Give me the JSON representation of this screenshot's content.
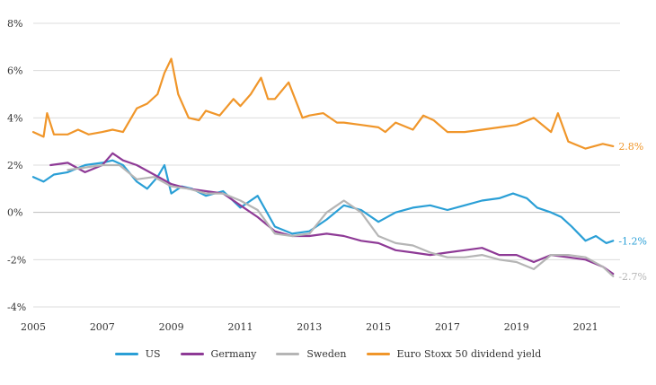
{
  "chart_data": {
    "type": "line",
    "title": "",
    "xlabel": "",
    "ylabel": "",
    "xlim": [
      2005,
      2022
    ],
    "ylim": [
      -4,
      8
    ],
    "y_ticks": [
      "-4%",
      "-2%",
      "0%",
      "2%",
      "4%",
      "6%",
      "8%"
    ],
    "y_tick_values": [
      -4,
      -2,
      0,
      2,
      4,
      6,
      8
    ],
    "x_ticks": [
      "2005",
      "2007",
      "2009",
      "2011",
      "2013",
      "2015",
      "2017",
      "2019",
      "2021"
    ],
    "x_tick_values": [
      2005,
      2007,
      2009,
      2011,
      2013,
      2015,
      2017,
      2019,
      2021
    ],
    "legend_position": "bottom",
    "series": [
      {
        "name": "US",
        "color": "#2a9fd6",
        "end_label": "-1.2%",
        "x": [
          2005.0,
          2005.3,
          2005.6,
          2006.0,
          2006.5,
          2007.0,
          2007.3,
          2007.6,
          2008.0,
          2008.3,
          2008.6,
          2008.8,
          2009.0,
          2009.3,
          2009.6,
          2010.0,
          2010.5,
          2011.0,
          2011.5,
          2012.0,
          2012.5,
          2013.0,
          2013.5,
          2014.0,
          2014.5,
          2015.0,
          2015.5,
          2016.0,
          2016.5,
          2017.0,
          2017.5,
          2018.0,
          2018.5,
          2018.9,
          2019.3,
          2019.6,
          2020.0,
          2020.3,
          2020.6,
          2021.0,
          2021.3,
          2021.6,
          2021.8
        ],
        "values": [
          1.5,
          1.3,
          1.6,
          1.7,
          2.0,
          2.1,
          2.2,
          2.0,
          1.3,
          1.0,
          1.5,
          2.0,
          0.8,
          1.1,
          1.0,
          0.7,
          0.9,
          0.2,
          0.7,
          -0.6,
          -0.9,
          -0.8,
          -0.3,
          0.3,
          0.1,
          -0.4,
          0.0,
          0.2,
          0.3,
          0.1,
          0.3,
          0.5,
          0.6,
          0.8,
          0.6,
          0.2,
          0.0,
          -0.2,
          -0.6,
          -1.2,
          -1.0,
          -1.3,
          -1.2
        ]
      },
      {
        "name": "Germany",
        "color": "#8e3a96",
        "end_label": "",
        "x": [
          2005.5,
          2006.0,
          2006.5,
          2007.0,
          2007.3,
          2007.6,
          2008.0,
          2008.5,
          2009.0,
          2009.5,
          2010.0,
          2010.5,
          2011.0,
          2011.5,
          2012.0,
          2012.5,
          2013.0,
          2013.5,
          2014.0,
          2014.5,
          2015.0,
          2015.5,
          2016.0,
          2016.5,
          2017.0,
          2017.5,
          2018.0,
          2018.5,
          2019.0,
          2019.5,
          2020.0,
          2020.5,
          2021.0,
          2021.5,
          2021.8
        ],
        "values": [
          2.0,
          2.1,
          1.7,
          2.0,
          2.5,
          2.2,
          2.0,
          1.6,
          1.2,
          1.0,
          0.9,
          0.8,
          0.3,
          -0.2,
          -0.8,
          -1.0,
          -1.0,
          -0.9,
          -1.0,
          -1.2,
          -1.3,
          -1.6,
          -1.7,
          -1.8,
          -1.7,
          -1.6,
          -1.5,
          -1.8,
          -1.8,
          -2.1,
          -1.8,
          -1.9,
          -2.0,
          -2.3,
          -2.6
        ]
      },
      {
        "name": "Sweden",
        "color": "#b5b5b5",
        "end_label": "-2.7%",
        "x": [
          2006.0,
          2006.5,
          2007.0,
          2007.5,
          2008.0,
          2008.5,
          2009.0,
          2009.5,
          2010.0,
          2010.5,
          2011.0,
          2011.5,
          2012.0,
          2012.5,
          2013.0,
          2013.5,
          2014.0,
          2014.5,
          2015.0,
          2015.5,
          2016.0,
          2016.5,
          2017.0,
          2017.5,
          2018.0,
          2018.5,
          2019.0,
          2019.5,
          2020.0,
          2020.5,
          2021.0,
          2021.5,
          2021.8
        ],
        "values": [
          1.8,
          1.9,
          2.0,
          2.0,
          1.4,
          1.5,
          1.1,
          1.0,
          0.8,
          0.8,
          0.5,
          0.1,
          -0.9,
          -1.0,
          -0.9,
          0.0,
          0.5,
          0.0,
          -1.0,
          -1.3,
          -1.4,
          -1.7,
          -1.9,
          -1.9,
          -1.8,
          -2.0,
          -2.1,
          -2.4,
          -1.8,
          -1.8,
          -1.9,
          -2.3,
          -2.7
        ]
      },
      {
        "name": "Euro Stoxx 50 dividend yield",
        "color": "#f0962a",
        "end_label": "2.8%",
        "x": [
          2005.0,
          2005.3,
          2005.4,
          2005.6,
          2006.0,
          2006.3,
          2006.6,
          2007.0,
          2007.3,
          2007.6,
          2008.0,
          2008.3,
          2008.6,
          2008.8,
          2009.0,
          2009.2,
          2009.5,
          2009.8,
          2010.0,
          2010.4,
          2010.8,
          2011.0,
          2011.3,
          2011.6,
          2011.8,
          2012.0,
          2012.4,
          2012.8,
          2013.0,
          2013.4,
          2013.8,
          2014.0,
          2014.5,
          2015.0,
          2015.2,
          2015.5,
          2016.0,
          2016.3,
          2016.6,
          2017.0,
          2017.5,
          2018.0,
          2018.5,
          2019.0,
          2019.5,
          2020.0,
          2020.2,
          2020.5,
          2021.0,
          2021.5,
          2021.8
        ],
        "values": [
          3.4,
          3.2,
          4.2,
          3.3,
          3.3,
          3.5,
          3.3,
          3.4,
          3.5,
          3.4,
          4.4,
          4.6,
          5.0,
          5.9,
          6.5,
          5.0,
          4.0,
          3.9,
          4.3,
          4.1,
          4.8,
          4.5,
          5.0,
          5.7,
          4.8,
          4.8,
          5.5,
          4.0,
          4.1,
          4.2,
          3.8,
          3.8,
          3.7,
          3.6,
          3.4,
          3.8,
          3.5,
          4.1,
          3.9,
          3.4,
          3.4,
          3.5,
          3.6,
          3.7,
          4.0,
          3.4,
          4.2,
          3.0,
          2.7,
          2.9,
          2.8
        ]
      }
    ]
  }
}
